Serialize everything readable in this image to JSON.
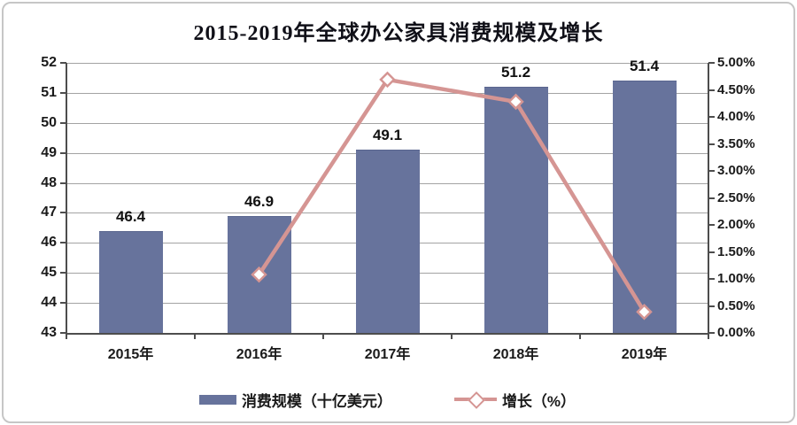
{
  "title": "2015-2019年全球办公家具消费规模及增长",
  "legend": {
    "bar_label": "消费规模（十亿美元）",
    "line_label": "增长（%）"
  },
  "colors": {
    "bar_fill": "#67739C",
    "bar_edge": "#5A668F",
    "line_stroke": "#D59593",
    "marker_fill": "#FFFFFF",
    "gridline": "#A3A3A3",
    "axis_line": "#4D4D4D",
    "text": "#1A1A1A"
  },
  "chart_data": {
    "type": "bar+line combo",
    "title": "2015-2019年全球办公家具消费规模及增长",
    "categories": [
      "2015年",
      "2016年",
      "2017年",
      "2018年",
      "2019年"
    ],
    "series": [
      {
        "name": "消费规模（十亿美元）",
        "type": "bar",
        "axis": "left",
        "values": [
          46.4,
          46.9,
          49.1,
          51.2,
          51.4
        ],
        "data_labels": [
          "46.4",
          "46.9",
          "49.1",
          "51.2",
          "51.4"
        ]
      },
      {
        "name": "增长（%）",
        "type": "line",
        "axis": "right",
        "marker": "diamond",
        "values": [
          null,
          1.08,
          4.69,
          4.28,
          0.39
        ]
      }
    ],
    "left_axis": {
      "min": 43,
      "max": 52,
      "step": 1,
      "tick_labels": [
        "52",
        "51",
        "50",
        "49",
        "48",
        "47",
        "46",
        "45",
        "44",
        "43"
      ]
    },
    "right_axis": {
      "min": 0,
      "max": 5,
      "step": 0.5,
      "tick_labels": [
        "5.00%",
        "4.50%",
        "4.00%",
        "3.50%",
        "3.00%",
        "2.50%",
        "2.00%",
        "1.50%",
        "1.00%",
        "0.50%",
        "0.00%"
      ]
    },
    "grid": true,
    "legend_position": "bottom"
  }
}
